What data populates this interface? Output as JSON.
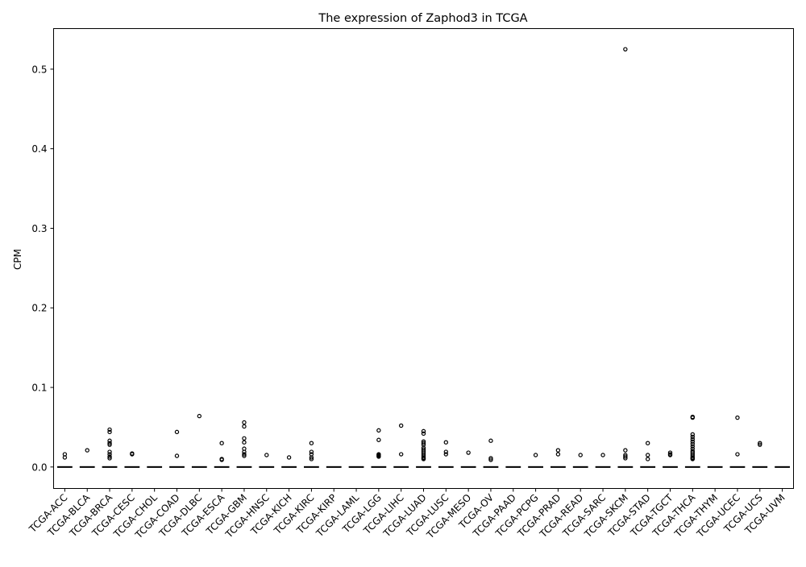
{
  "chart_data": {
    "type": "box",
    "title": "The expression of Zaphod3 in TCGA",
    "xlabel": "",
    "ylabel": "CPM",
    "ylim": [
      -0.027,
      0.551
    ],
    "yticks": [
      0.0,
      0.1,
      0.2,
      0.3,
      0.4,
      0.5
    ],
    "ytick_labels": [
      "0.0",
      "0.1",
      "0.2",
      "0.3",
      "0.4",
      "0.5"
    ],
    "grid": false,
    "legend": "none",
    "colors": {
      "median": "#000000",
      "box": "#000000",
      "outlier_edge": "#000000"
    },
    "categories": [
      "TCGA-ACC",
      "TCGA-BLCA",
      "TCGA-BRCA",
      "TCGA-CESC",
      "TCGA-CHOL",
      "TCGA-COAD",
      "TCGA-DLBC",
      "TCGA-ESCA",
      "TCGA-GBM",
      "TCGA-HNSC",
      "TCGA-KICH",
      "TCGA-KIRC",
      "TCGA-KIRP",
      "TCGA-LAML",
      "TCGA-LGG",
      "TCGA-LIHC",
      "TCGA-LUAD",
      "TCGA-LUSC",
      "TCGA-MESO",
      "TCGA-OV",
      "TCGA-PAAD",
      "TCGA-PCPG",
      "TCGA-PRAD",
      "TCGA-READ",
      "TCGA-SARC",
      "TCGA-SKCM",
      "TCGA-STAD",
      "TCGA-TGCT",
      "TCGA-THCA",
      "TCGA-THYM",
      "TCGA-UCEC",
      "TCGA-UCS",
      "TCGA-UVM"
    ],
    "medians": [
      0,
      0,
      0,
      0,
      0,
      0,
      0,
      0,
      0,
      0,
      0,
      0,
      0,
      0,
      0,
      0,
      0,
      0,
      0,
      0,
      0,
      0,
      0,
      0,
      0,
      0,
      0,
      0,
      0,
      0,
      0,
      0,
      0
    ],
    "q1": [
      0,
      0,
      0,
      0,
      0,
      0,
      0,
      0,
      0,
      0,
      0,
      0,
      0,
      0,
      0,
      0,
      0,
      0,
      0,
      0,
      0,
      0,
      0,
      0,
      0,
      0,
      0,
      0,
      0,
      0,
      0,
      0,
      0
    ],
    "q3": [
      0,
      0,
      0,
      0,
      0,
      0,
      0,
      0,
      0,
      0,
      0,
      0,
      0,
      0,
      0,
      0,
      0,
      0,
      0,
      0,
      0,
      0,
      0,
      0,
      0,
      0,
      0,
      0,
      0,
      0,
      0,
      0,
      0
    ],
    "outliers": [
      [
        0.016,
        0.012
      ],
      [
        0.021
      ],
      [
        0.047,
        0.044,
        0.033,
        0.03,
        0.028,
        0.019,
        0.016,
        0.013,
        0.011
      ],
      [
        0.017,
        0.016
      ],
      [],
      [
        0.044,
        0.014
      ],
      [
        0.064
      ],
      [
        0.03,
        0.01,
        0.009
      ],
      [
        0.056,
        0.051,
        0.036,
        0.031,
        0.023,
        0.019,
        0.016,
        0.014
      ],
      [
        0.015
      ],
      [
        0.012
      ],
      [
        0.03,
        0.019,
        0.016,
        0.012,
        0.01
      ],
      [],
      [],
      [
        0.046,
        0.034,
        0.016,
        0.015,
        0.014,
        0.013
      ],
      [
        0.052,
        0.016
      ],
      [
        0.045,
        0.042,
        0.032,
        0.03,
        0.028,
        0.024,
        0.022,
        0.02,
        0.018,
        0.016,
        0.014,
        0.012,
        0.011,
        0.01
      ],
      [
        0.031,
        0.019,
        0.016
      ],
      [
        0.018
      ],
      [
        0.033,
        0.011,
        0.009
      ],
      [],
      [
        0.015
      ],
      [
        0.021,
        0.016
      ],
      [
        0.015
      ],
      [
        0.015
      ],
      [
        0.525,
        0.021,
        0.015,
        0.013,
        0.011
      ],
      [
        0.03,
        0.015,
        0.01
      ],
      [
        0.018,
        0.016,
        0.015
      ],
      [
        0.063,
        0.062,
        0.041,
        0.038,
        0.035,
        0.032,
        0.029,
        0.026,
        0.023,
        0.02,
        0.018,
        0.016,
        0.014,
        0.012,
        0.011,
        0.01
      ],
      [],
      [
        0.062,
        0.016
      ],
      [
        0.03,
        0.028
      ],
      []
    ]
  }
}
